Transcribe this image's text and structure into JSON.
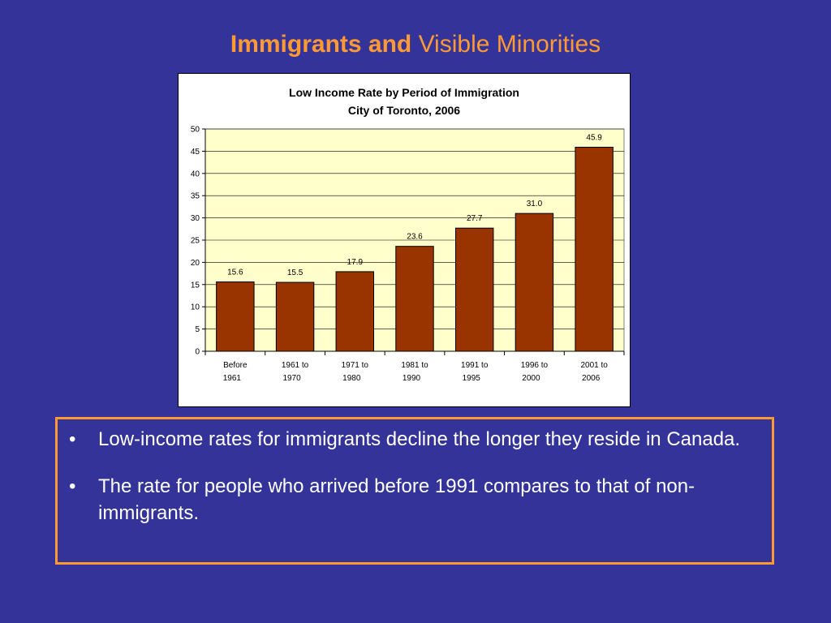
{
  "slide": {
    "title_bold": "Immigrants and",
    "title_rest": "Visible Minorities",
    "title_color": "#FF9933",
    "background": "#333399"
  },
  "chart_data": {
    "type": "bar",
    "title": "Low Income Rate by Period of Immigration",
    "subtitle": "City of Toronto, 2006",
    "categories": [
      [
        "Before",
        "1961"
      ],
      [
        "1961 to",
        "1970"
      ],
      [
        "1971 to",
        "1980"
      ],
      [
        "1981 to",
        "1990"
      ],
      [
        "1991 to",
        "1995"
      ],
      [
        "1996 to",
        "2000"
      ],
      [
        "2001 to",
        "2006"
      ]
    ],
    "values": [
      15.6,
      15.5,
      17.9,
      23.6,
      27.7,
      31.0,
      45.9
    ],
    "value_labels": [
      "15.6",
      "15.5",
      "17.9",
      "23.6",
      "27.7",
      "31.0",
      "45.9"
    ],
    "ylim": [
      0,
      50
    ],
    "yticks": [
      0,
      5,
      10,
      15,
      20,
      25,
      30,
      35,
      40,
      45,
      50
    ],
    "grid": true,
    "bar_color": "#993300",
    "plot_bg": "#FFFFCC"
  },
  "bullets": [
    "Low-income rates for immigrants decline the longer they reside in Canada.",
    "The rate for people who arrived before 1991 compares to that of non-immigrants."
  ],
  "bullet_char": "•"
}
